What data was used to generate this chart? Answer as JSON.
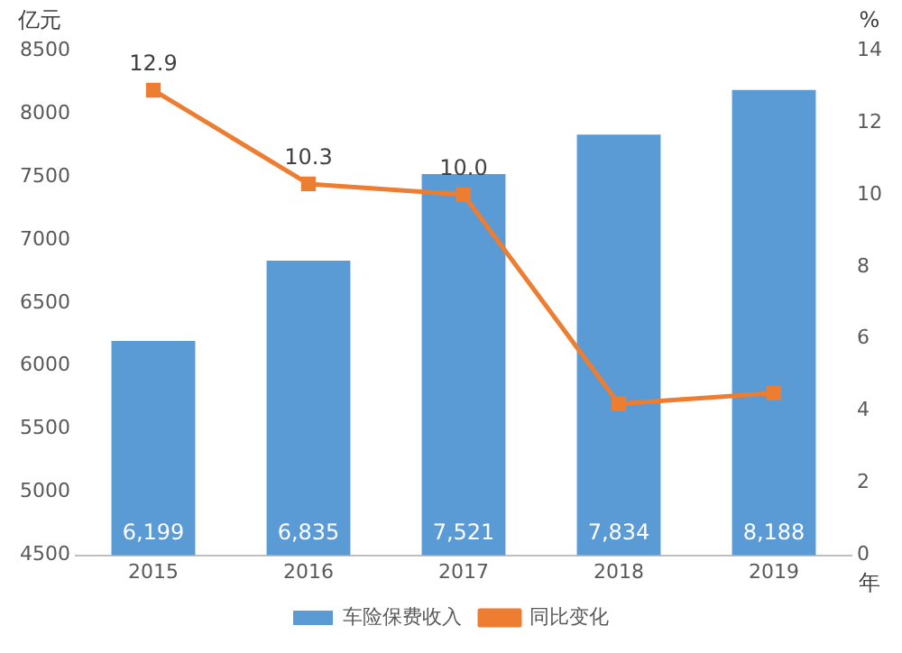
{
  "chart_data": {
    "type": "bar",
    "ylabel": "亿元",
    "y2label": "%",
    "xlabel": "年",
    "categories": [
      "2015",
      "2016",
      "2017",
      "2018",
      "2019"
    ],
    "series": [
      {
        "name": "车险保费收入",
        "color": "#5b9bd5",
        "values": [
          6199,
          6835,
          7521,
          7834,
          8188
        ],
        "value_labels": [
          "6,199",
          "6,835",
          "7,521",
          "7,834",
          "8,188"
        ]
      },
      {
        "name": "同比变化",
        "type": "line",
        "axis": "y2",
        "color": "#ed7d31",
        "marker": "square",
        "values": [
          12.9,
          10.3,
          10.0,
          4.2,
          4.5
        ],
        "value_labels": [
          "12.9",
          "10.3",
          "10.0",
          null,
          null
        ]
      }
    ],
    "ylim": [
      4500,
      8500
    ],
    "yticks": [
      4500,
      5000,
      5500,
      6000,
      6500,
      7000,
      7500,
      8000,
      8500
    ],
    "y2lim": [
      0,
      14
    ],
    "y2ticks": [
      0,
      2,
      4,
      6,
      8,
      10,
      12,
      14
    ],
    "grid": false,
    "legend": "bottom"
  }
}
